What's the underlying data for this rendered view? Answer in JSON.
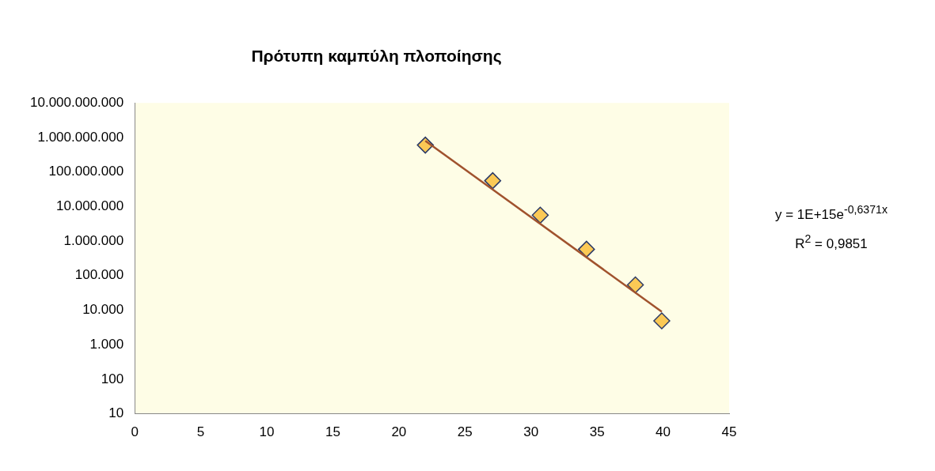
{
  "chart_data": {
    "type": "scatter",
    "title": "Πρότυπη καμπύλη πλοποίησης",
    "series": [
      {
        "type": "scatter",
        "color": "#fbc955",
        "x": [
          22,
          27.1,
          30.7,
          34.2,
          37.9,
          39.9
        ],
        "values": [
          600000000,
          56000000,
          5600000,
          580000,
          54000,
          4900
        ],
        "marker": "diamond"
      },
      {
        "type": "line",
        "color": "#a0522d",
        "x": [
          22,
          39.9
        ],
        "values": [
          800000000,
          9000
        ],
        "marker": "none",
        "line_style": "solid"
      }
    ],
    "log": "y",
    "xlim": [
      0,
      45
    ],
    "xticks": [
      0,
      5,
      10,
      15,
      20,
      25,
      30,
      35,
      40,
      45
    ],
    "ylim": [
      10,
      10000000000
    ],
    "yticks": [
      {
        "value": 10,
        "label": "10"
      },
      {
        "value": 100,
        "label": "100"
      },
      {
        "value": 1000,
        "label": "1.000"
      },
      {
        "value": 10000,
        "label": "10.000"
      },
      {
        "value": 100000,
        "label": "100.000"
      },
      {
        "value": 1000000,
        "label": "1.000.000"
      },
      {
        "value": 10000000,
        "label": "10.000.000"
      },
      {
        "value": 100000000,
        "label": "100.000.000"
      },
      {
        "value": 1000000000,
        "label": "1.000.000.000"
      },
      {
        "value": 10000000000,
        "label": "10.000.000.000"
      }
    ],
    "annotations": [
      "y = 1E+15e$^{-0,6371x}$",
      "R$^{2}$ = 0,9851"
    ],
    "grid": false,
    "legend": false
  }
}
